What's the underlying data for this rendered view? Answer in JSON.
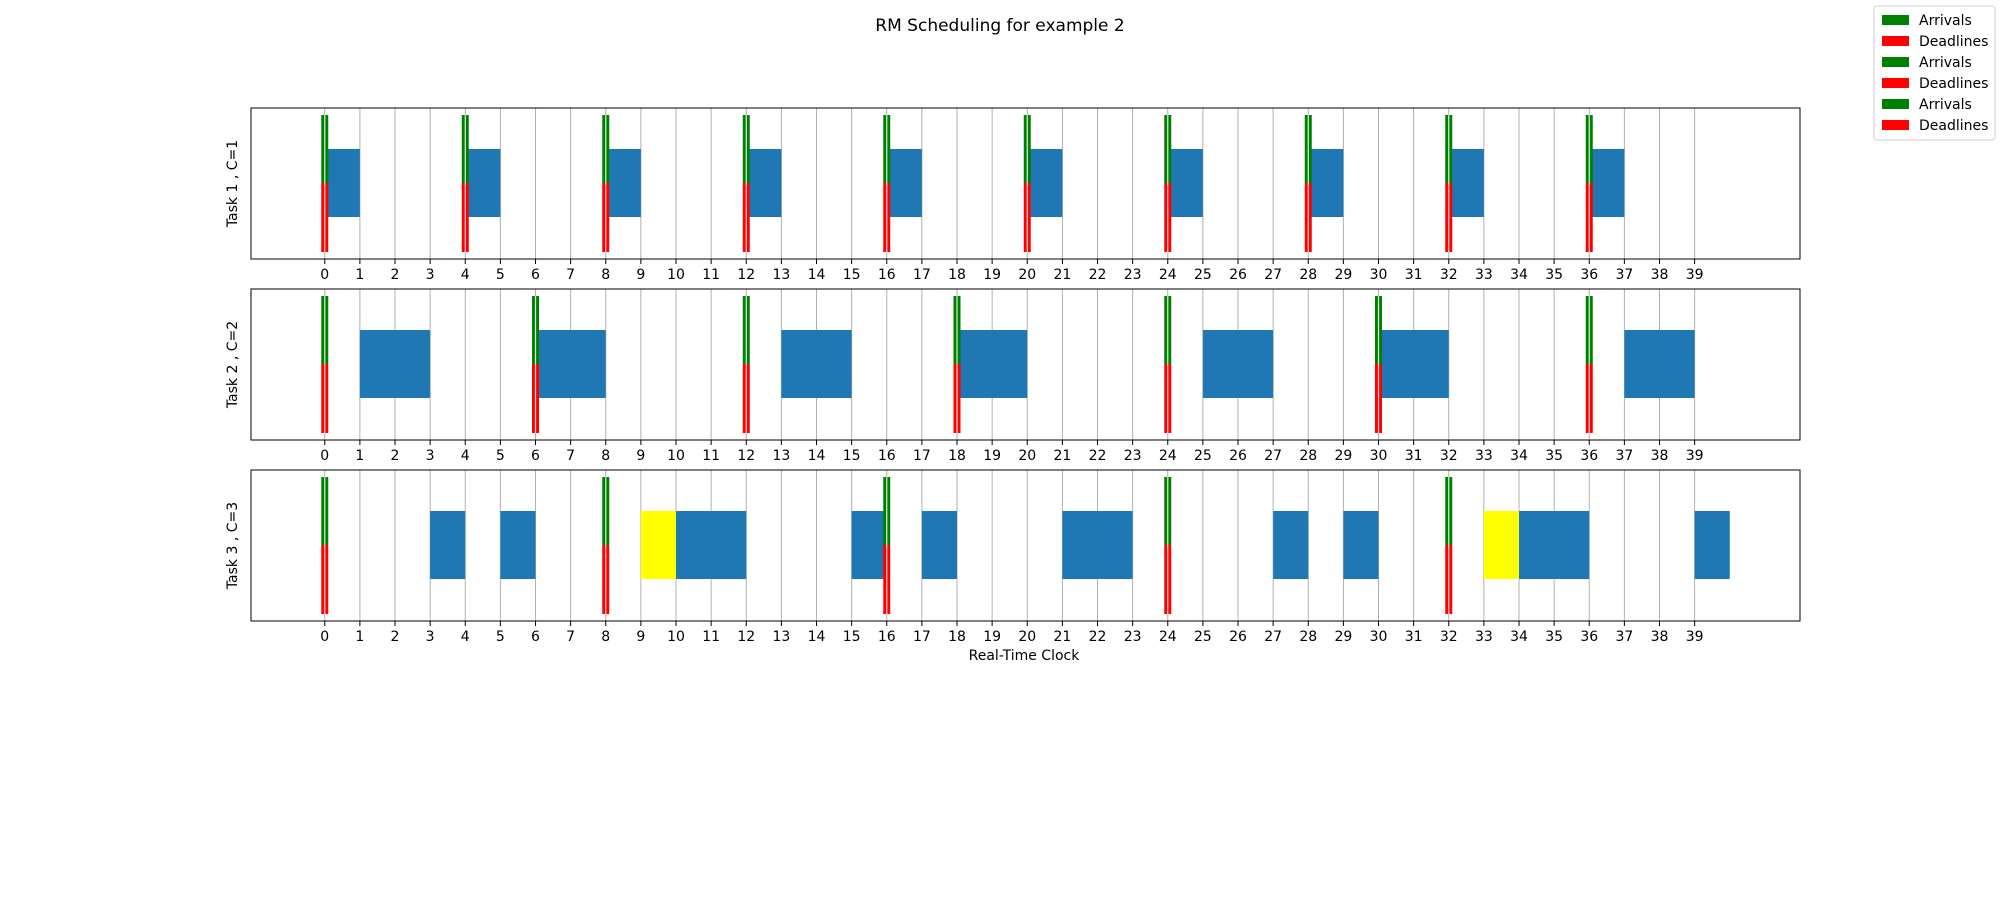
{
  "chart_data": {
    "type": "gantt",
    "title": "RM Scheduling for example 2",
    "xlabel": "Real-Time Clock",
    "xlim": [
      -2.1,
      42
    ],
    "xticks": [
      0,
      1,
      2,
      3,
      4,
      5,
      6,
      7,
      8,
      9,
      10,
      11,
      12,
      13,
      14,
      15,
      16,
      17,
      18,
      19,
      20,
      21,
      22,
      23,
      24,
      25,
      26,
      27,
      28,
      29,
      30,
      31,
      32,
      33,
      34,
      35,
      36,
      37,
      38,
      39
    ],
    "grid": true,
    "legend": {
      "placement": "top-right",
      "entries": [
        {
          "label": "Arrivals",
          "color": "#008000"
        },
        {
          "label": "Deadlines",
          "color": "#ff0000"
        },
        {
          "label": "Arrivals",
          "color": "#008000"
        },
        {
          "label": "Deadlines",
          "color": "#ff0000"
        },
        {
          "label": "Arrivals",
          "color": "#008000"
        },
        {
          "label": "Deadlines",
          "color": "#ff0000"
        }
      ]
    },
    "colors": {
      "execution": "#1f77b4",
      "highlight": "#ffff00",
      "arrival": "#008000",
      "deadline": "#ff0000"
    },
    "tasks": [
      {
        "ylabel": "Task 1 , C=1",
        "arrivals": [
          0,
          4,
          8,
          12,
          16,
          20,
          24,
          28,
          32,
          36
        ],
        "deadlines": [
          0,
          4,
          8,
          12,
          16,
          20,
          24,
          28,
          32,
          36
        ],
        "executions": [
          [
            0,
            1
          ],
          [
            4,
            5
          ],
          [
            8,
            9
          ],
          [
            12,
            13
          ],
          [
            16,
            17
          ],
          [
            20,
            21
          ],
          [
            24,
            25
          ],
          [
            28,
            29
          ],
          [
            32,
            33
          ],
          [
            36,
            37
          ]
        ],
        "highlights": []
      },
      {
        "ylabel": "Task 2 , C=2",
        "arrivals": [
          0,
          6,
          12,
          18,
          24,
          30,
          36
        ],
        "deadlines": [
          0,
          6,
          12,
          18,
          24,
          30,
          36
        ],
        "executions": [
          [
            1,
            3
          ],
          [
            6,
            8
          ],
          [
            13,
            15
          ],
          [
            18,
            20
          ],
          [
            25,
            27
          ],
          [
            30,
            32
          ],
          [
            37,
            39
          ]
        ],
        "highlights": []
      },
      {
        "ylabel": "Task 3 , C=3",
        "arrivals": [
          0,
          8,
          16,
          24,
          32
        ],
        "deadlines": [
          0,
          8,
          16,
          24,
          32
        ],
        "executions": [
          [
            3,
            4
          ],
          [
            5,
            6
          ],
          [
            10,
            12
          ],
          [
            15,
            16
          ],
          [
            17,
            18
          ],
          [
            21,
            23
          ],
          [
            27,
            28
          ],
          [
            29,
            30
          ],
          [
            34,
            36
          ],
          [
            39,
            40
          ]
        ],
        "highlights": [
          [
            9,
            10
          ],
          [
            33,
            34
          ]
        ]
      }
    ]
  }
}
